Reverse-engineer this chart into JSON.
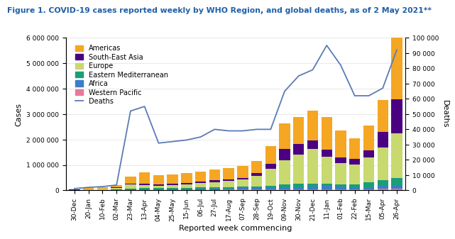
{
  "title": "Figure 1. COVID-19 cases reported weekly by WHO Region, and global deaths, as of 2 May 2021**",
  "xlabel": "Reported week commencing",
  "ylabel_left": "Cases",
  "ylabel_right": "Deaths",
  "weeks": [
    "30-Dec",
    "20-Jan",
    "10-Feb",
    "02-Mar",
    "23-Mar",
    "13-Apr",
    "04-May",
    "25-May",
    "15-Jun",
    "06-Jul",
    "27-Jul",
    "17-Aug",
    "07-Sep",
    "28-Sep",
    "19-Oct",
    "09-Nov",
    "30-Nov",
    "21-Dec",
    "11-Jan",
    "01-Feb",
    "22-Feb",
    "15-Mar",
    "05-Apr",
    "26-Apr"
  ],
  "americas": [
    20000,
    40000,
    60000,
    100000,
    280000,
    470000,
    370000,
    380000,
    380000,
    390000,
    420000,
    450000,
    450000,
    480000,
    700000,
    1000000,
    1050000,
    1150000,
    1300000,
    1050000,
    820000,
    950000,
    1250000,
    3250000
  ],
  "south_east_asia": [
    3000,
    4000,
    6000,
    10000,
    15000,
    45000,
    50000,
    55000,
    60000,
    70000,
    80000,
    75000,
    80000,
    100000,
    200000,
    430000,
    420000,
    360000,
    280000,
    220000,
    200000,
    280000,
    600000,
    1350000
  ],
  "europe": [
    15000,
    25000,
    40000,
    70000,
    180000,
    120000,
    90000,
    100000,
    130000,
    160000,
    200000,
    230000,
    280000,
    430000,
    650000,
    950000,
    1150000,
    1350000,
    1050000,
    850000,
    800000,
    1000000,
    1300000,
    1750000
  ],
  "eastern_mediterranean": [
    4000,
    6000,
    10000,
    18000,
    30000,
    45000,
    48000,
    52000,
    55000,
    60000,
    60000,
    55000,
    55000,
    60000,
    90000,
    130000,
    130000,
    110000,
    95000,
    90000,
    110000,
    180000,
    230000,
    280000
  ],
  "africa": [
    1500,
    2500,
    4000,
    7000,
    10000,
    18000,
    22000,
    26000,
    30000,
    35000,
    45000,
    50000,
    55000,
    55000,
    65000,
    72000,
    90000,
    110000,
    120000,
    95000,
    75000,
    80000,
    110000,
    140000
  ],
  "western_pacific": [
    6000,
    8000,
    10000,
    12000,
    17000,
    25000,
    25000,
    23000,
    23000,
    25000,
    27000,
    28000,
    30000,
    32000,
    36000,
    44000,
    46000,
    48000,
    48000,
    44000,
    42000,
    46000,
    58000,
    70000
  ],
  "deaths": [
    1200,
    2000,
    2500,
    3500,
    52000,
    55000,
    31000,
    32000,
    33000,
    35000,
    40000,
    39000,
    39000,
    40000,
    40000,
    65000,
    75000,
    79000,
    95000,
    82000,
    62000,
    62000,
    67000,
    92000
  ],
  "colors": {
    "americas": "#F5A623",
    "south_east_asia": "#4B0082",
    "europe": "#C8D96F",
    "eastern_mediterranean": "#1A9E78",
    "africa": "#3B7DC8",
    "western_pacific": "#E8799A"
  },
  "deaths_color": "#5A7BB5",
  "background_color": "#FFFFFF",
  "ylim_left": [
    0,
    6000000
  ],
  "ylim_right": [
    0,
    100000
  ],
  "title_color": "#1F5FA6",
  "title_fontsize": 7.8,
  "legend_fontsize": 7,
  "axis_label_fontsize": 8,
  "tick_fontsize": 6.5
}
